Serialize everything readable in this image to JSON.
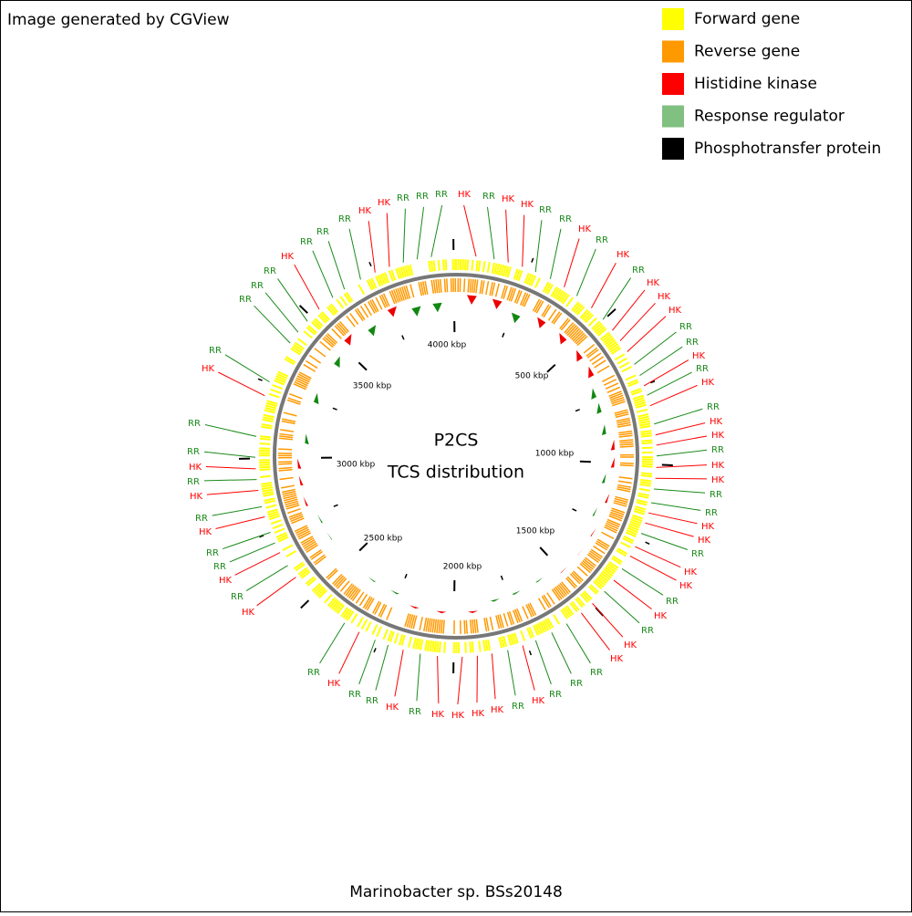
{
  "header": {
    "text": "Image generated by CGView"
  },
  "legend": [
    {
      "label": "Forward gene",
      "color": "#ffff00"
    },
    {
      "label": "Reverse gene",
      "color": "#ff9900"
    },
    {
      "label": "Histidine kinase",
      "color": "#ff0000"
    },
    {
      "label": "Response regulator",
      "color": "#80c080"
    },
    {
      "label": "Phosphotransfer protein",
      "color": "#000000"
    }
  ],
  "map": {
    "title": "P2CS",
    "subtitle": "TCS distribution",
    "scale_labels": [
      "500 kbp",
      "1000 kbp",
      "1500 kbp",
      "2000 kbp",
      "2500 kbp",
      "3000 kbp",
      "3500 kbp",
      "4000 kbp"
    ],
    "feature_labels": [
      "HK",
      "RR",
      "HK",
      "HK",
      "RR",
      "RR",
      "HK",
      "RR",
      "HK",
      "RR",
      "HK",
      "HK",
      "HK",
      "RR",
      "RR",
      "HK",
      "RR",
      "HK",
      "RR",
      "HK",
      "HK",
      "RR",
      "HK",
      "HK",
      "RR",
      "RR",
      "HK",
      "HK",
      "RR",
      "HK",
      "HK",
      "RR",
      "HK",
      "RR",
      "HK",
      "HK",
      "RR",
      "RR",
      "RR",
      "HK",
      "RR",
      "HK",
      "HK",
      "HK",
      "HK",
      "RR",
      "HK",
      "RR",
      "RR",
      "HK",
      "RR",
      "HK",
      "RR",
      "HK",
      "RR",
      "RR",
      "HK",
      "RR",
      "HK",
      "RR",
      "HK",
      "RR",
      "RR",
      "HK",
      "RR",
      "RR",
      "RR",
      "RR",
      "HK",
      "RR",
      "RR",
      "RR",
      "HK",
      "HK",
      "RR",
      "RR",
      "RR"
    ]
  },
  "footer": {
    "text": "Marinobacter sp. BSs20148"
  }
}
